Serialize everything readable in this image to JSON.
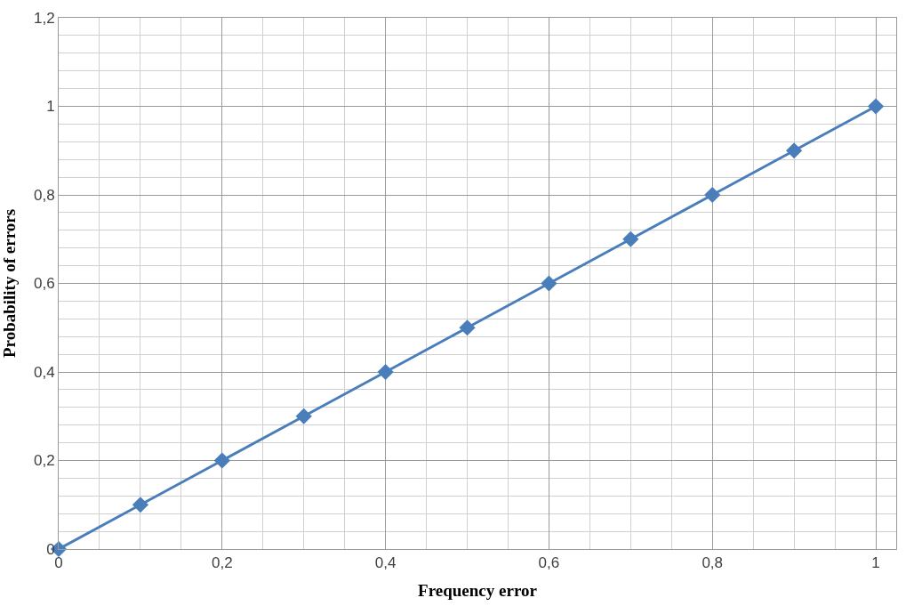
{
  "chart_data": {
    "type": "line",
    "xlabel": "Frequency error",
    "ylabel": "Probability of errors",
    "x": [
      0,
      0.1,
      0.2,
      0.3,
      0.4,
      0.5,
      0.6,
      0.7,
      0.8,
      0.9,
      1
    ],
    "series": [
      {
        "color": "#4a7ebb",
        "values": [
          0,
          0.1,
          0.2,
          0.3,
          0.4,
          0.5,
          0.6,
          0.7,
          0.8,
          0.9,
          1
        ]
      }
    ],
    "xlim": [
      0,
      1.025
    ],
    "xticks": [
      0,
      {
        "value": 0.2,
        "label": "0,2"
      },
      {
        "value": 0.4,
        "label": "0,4"
      },
      {
        "value": 0.6,
        "label": "0,6"
      },
      {
        "value": 0.8,
        "label": "0,8"
      },
      1
    ],
    "ylim": [
      0,
      1.2
    ],
    "yticks": [
      0,
      {
        "value": 0.2,
        "label": "0,2"
      },
      {
        "value": 0.4,
        "label": "0,4"
      },
      {
        "value": 0.6,
        "label": "0,6"
      },
      {
        "value": 0.8,
        "label": "0,8"
      },
      1,
      {
        "value": 1.2,
        "label": "1,2"
      }
    ],
    "grid": true,
    "marker": "diamond",
    "line_style": "solid"
  }
}
